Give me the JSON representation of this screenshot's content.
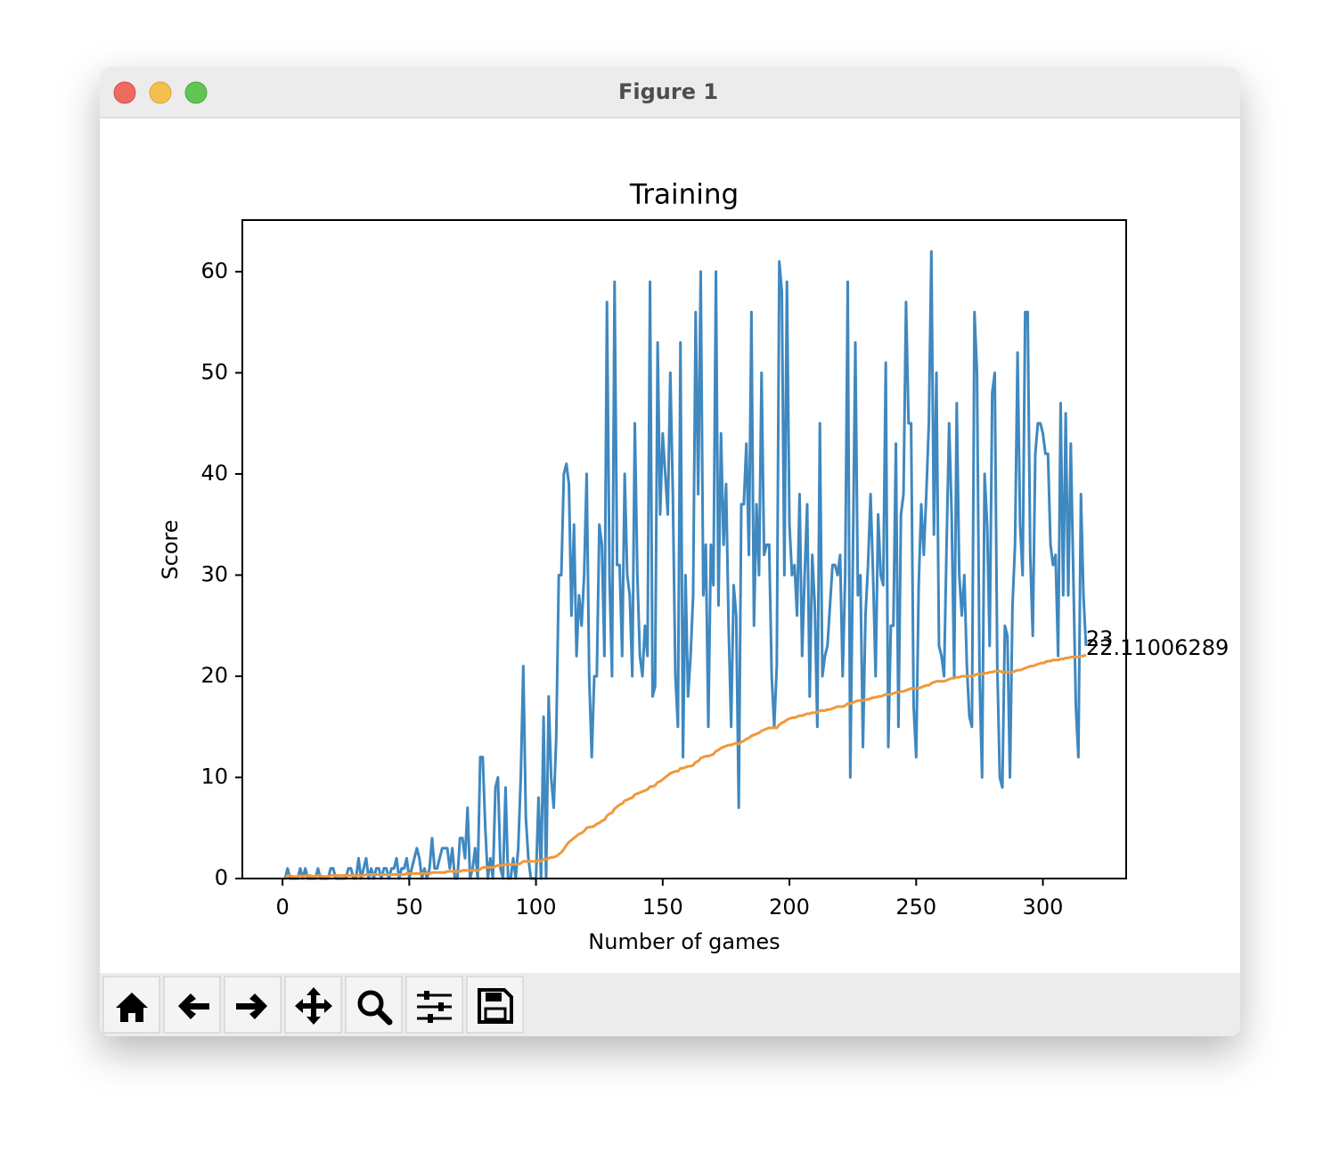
{
  "window": {
    "title": "Figure 1"
  },
  "chart_data": {
    "type": "line",
    "title": "Training",
    "x_label": "Number of games",
    "y_label": "Score",
    "x": [
      0,
      1,
      2,
      3,
      4,
      5,
      6,
      7,
      8,
      9,
      10,
      11,
      12,
      13,
      14,
      15,
      16,
      17,
      18,
      19,
      20,
      21,
      22,
      23,
      24,
      25,
      26,
      27,
      28,
      29,
      30,
      31,
      32,
      33,
      34,
      35,
      36,
      37,
      38,
      39,
      40,
      41,
      42,
      43,
      44,
      45,
      46,
      47,
      48,
      49,
      50,
      51,
      52,
      53,
      54,
      55,
      56,
      57,
      58,
      59,
      60,
      61,
      62,
      63,
      64,
      65,
      66,
      67,
      68,
      69,
      70,
      71,
      72,
      73,
      74,
      75,
      76,
      77,
      78,
      79,
      80,
      81,
      82,
      83,
      84,
      85,
      86,
      87,
      88,
      89,
      90,
      91,
      92,
      93,
      94,
      95,
      96,
      97,
      98,
      99,
      100,
      101,
      102,
      103,
      104,
      105,
      106,
      107,
      108,
      109,
      110,
      111,
      112,
      113,
      114,
      115,
      116,
      117,
      118,
      119,
      120,
      121,
      122,
      123,
      124,
      125,
      126,
      127,
      128,
      129,
      130,
      131,
      132,
      133,
      134,
      135,
      136,
      137,
      138,
      139,
      140,
      141,
      142,
      143,
      144,
      145,
      146,
      147,
      148,
      149,
      150,
      151,
      152,
      153,
      154,
      155,
      156,
      157,
      158,
      159,
      160,
      161,
      162,
      163,
      164,
      165,
      166,
      167,
      168,
      169,
      170,
      171,
      172,
      173,
      174,
      175,
      176,
      177,
      178,
      179,
      180,
      181,
      182,
      183,
      184,
      185,
      186,
      187,
      188,
      189,
      190,
      191,
      192,
      193,
      194,
      195,
      196,
      197,
      198,
      199,
      200,
      201,
      202,
      203,
      204,
      205,
      206,
      207,
      208,
      209,
      210,
      211,
      212,
      213,
      214,
      215,
      216,
      217,
      218,
      219,
      220,
      221,
      222,
      223,
      224,
      225,
      226,
      227,
      228,
      229,
      230,
      231,
      232,
      233,
      234,
      235,
      236,
      237,
      238,
      239,
      240,
      241,
      242,
      243,
      244,
      245,
      246,
      247,
      248,
      249,
      250,
      251,
      252,
      253,
      254,
      255,
      256,
      257,
      258,
      259,
      260,
      261,
      262,
      263,
      264,
      265,
      266,
      267,
      268,
      269,
      270,
      271,
      272,
      273,
      274,
      275,
      276,
      277,
      278,
      279,
      280,
      281,
      282,
      283,
      284,
      285,
      286,
      287,
      288,
      289,
      290,
      291,
      292,
      293,
      294,
      295,
      296,
      297,
      298,
      299,
      300,
      301,
      302,
      303,
      304,
      305,
      306,
      307,
      308,
      309,
      310,
      311,
      312,
      313,
      314,
      315,
      316,
      317
    ],
    "series": [
      {
        "color": "#3f88c0",
        "values": [
          0,
          0,
          1,
          0,
          0,
          0,
          0,
          1,
          0,
          1,
          0,
          0,
          0,
          0,
          1,
          0,
          0,
          0,
          0,
          1,
          1,
          0,
          0,
          0,
          0,
          0,
          1,
          1,
          0,
          0,
          2,
          0,
          1,
          2,
          0,
          1,
          0,
          1,
          1,
          0,
          1,
          1,
          0,
          1,
          1,
          2,
          0,
          1,
          1,
          2,
          0,
          1,
          2,
          3,
          2,
          0,
          1,
          0,
          1,
          4,
          1,
          1,
          2,
          3,
          3,
          3,
          1,
          3,
          0,
          0,
          4,
          4,
          2,
          7,
          0,
          1,
          3,
          0,
          12,
          12,
          5,
          0,
          2,
          0,
          9,
          10,
          1,
          0,
          9,
          0,
          0,
          2,
          0,
          3,
          10,
          21,
          6,
          2,
          0,
          0,
          0,
          8,
          0,
          16,
          0,
          18,
          10,
          7,
          14,
          30,
          30,
          40,
          41,
          39,
          26,
          35,
          22,
          28,
          25,
          30,
          40,
          20,
          12,
          20,
          20,
          35,
          33,
          22,
          57,
          30,
          20,
          59,
          31,
          31,
          22,
          40,
          30,
          28,
          20,
          45,
          30,
          22,
          20,
          25,
          22,
          59,
          18,
          19,
          53,
          36,
          44,
          40,
          36,
          50,
          38,
          20,
          15,
          53,
          12,
          30,
          18,
          22,
          28,
          56,
          38,
          60,
          28,
          33,
          15,
          33,
          29,
          60,
          27,
          44,
          33,
          39,
          25,
          15,
          29,
          26,
          7,
          37,
          37,
          43,
          32,
          56,
          25,
          37,
          30,
          50,
          32,
          33,
          33,
          20,
          15,
          21,
          61,
          58,
          30,
          59,
          35,
          30,
          31,
          26,
          38,
          22,
          30,
          37,
          18,
          32,
          27,
          15,
          45,
          20,
          22,
          23,
          27,
          31,
          31,
          30,
          32,
          20,
          30,
          59,
          10,
          31,
          53,
          28,
          30,
          13,
          26,
          31,
          38,
          30,
          20,
          36,
          30,
          29,
          51,
          13,
          25,
          25,
          43,
          15,
          36,
          38,
          57,
          45,
          45,
          17,
          12,
          29,
          37,
          32,
          38,
          45,
          62,
          34,
          50,
          23,
          22,
          20,
          33,
          45,
          36,
          20,
          47,
          30,
          26,
          30,
          21,
          16,
          15,
          56,
          50,
          20,
          10,
          40,
          35,
          23,
          48,
          50,
          21,
          10,
          9,
          25,
          24,
          10,
          27,
          33,
          52,
          35,
          30,
          56,
          56,
          32,
          24,
          42,
          45,
          45,
          44,
          42,
          42,
          33,
          31,
          32,
          22,
          47,
          28,
          46,
          28,
          43,
          30,
          17,
          12,
          38,
          28,
          23
        ]
      },
      {
        "color": "#f0983a",
        "values": [
          0,
          0,
          0.3,
          0.3,
          0.2,
          0.2,
          0.2,
          0.3,
          0.2,
          0.3,
          0.3,
          0.3,
          0.2,
          0.2,
          0.3,
          0.3,
          0.2,
          0.2,
          0.2,
          0.3,
          0.3,
          0.3,
          0.3,
          0.3,
          0.3,
          0.3,
          0.3,
          0.3,
          0.3,
          0.3,
          0.3,
          0.3,
          0.3,
          0.4,
          0.4,
          0.4,
          0.4,
          0.4,
          0.4,
          0.4,
          0.4,
          0.4,
          0.4,
          0.4,
          0.4,
          0.4,
          0.4,
          0.4,
          0.4,
          0.5,
          0.5,
          0.5,
          0.5,
          0.5,
          0.5,
          0.5,
          0.5,
          0.5,
          0.5,
          0.6,
          0.6,
          0.6,
          0.6,
          0.6,
          0.6,
          0.7,
          0.7,
          0.7,
          0.7,
          0.7,
          0.7,
          0.8,
          0.8,
          0.8,
          0.8,
          0.8,
          0.8,
          0.8,
          0.9,
          1.1,
          1.1,
          1.1,
          1.1,
          1.1,
          1.2,
          1.3,
          1.3,
          1.3,
          1.4,
          1.4,
          1.4,
          1.4,
          1.4,
          1.4,
          1.5,
          1.7,
          1.7,
          1.7,
          1.7,
          1.7,
          1.7,
          1.8,
          1.7,
          1.9,
          1.9,
          2.0,
          2.1,
          2.1,
          2.2,
          2.4,
          2.6,
          2.9,
          3.3,
          3.6,
          3.8,
          4.0,
          4.2,
          4.4,
          4.5,
          4.7,
          5.0,
          5.1,
          5.1,
          5.2,
          5.4,
          5.5,
          5.7,
          5.8,
          6.2,
          6.4,
          6.5,
          6.9,
          7.1,
          7.3,
          7.4,
          7.7,
          7.8,
          7.9,
          8.0,
          8.3,
          8.4,
          8.5,
          8.6,
          8.7,
          8.8,
          9.1,
          9.1,
          9.2,
          9.5,
          9.6,
          9.8,
          10.0,
          10.2,
          10.4,
          10.5,
          10.6,
          10.6,
          10.9,
          10.9,
          11.0,
          11.1,
          11.1,
          11.2,
          11.5,
          11.6,
          11.9,
          12.0,
          12.1,
          12.1,
          12.2,
          12.3,
          12.6,
          12.7,
          12.9,
          13.0,
          13.1,
          13.2,
          13.2,
          13.3,
          13.4,
          13.3,
          13.5,
          13.6,
          13.8,
          13.9,
          14.1,
          14.2,
          14.3,
          14.4,
          14.6,
          14.7,
          14.8,
          14.9,
          14.9,
          14.9,
          14.9,
          15.2,
          15.4,
          15.5,
          15.7,
          15.8,
          15.9,
          15.9,
          16.0,
          16.1,
          16.1,
          16.2,
          16.3,
          16.3,
          16.4,
          16.4,
          16.4,
          16.6,
          16.6,
          16.6,
          16.7,
          16.7,
          16.8,
          16.9,
          17.0,
          17.0,
          17.0,
          17.1,
          17.3,
          17.3,
          17.4,
          17.5,
          17.6,
          17.6,
          17.6,
          17.7,
          17.7,
          17.8,
          17.9,
          17.9,
          18.0,
          18.0,
          18.1,
          18.2,
          18.2,
          18.2,
          18.3,
          18.4,
          18.4,
          18.5,
          18.5,
          18.6,
          18.7,
          18.8,
          18.8,
          18.8,
          18.8,
          18.9,
          19.0,
          19.1,
          19.1,
          19.3,
          19.4,
          19.5,
          19.5,
          19.5,
          19.5,
          19.6,
          19.7,
          19.8,
          19.8,
          19.9,
          19.9,
          20.0,
          20.0,
          20.0,
          20.0,
          20.0,
          20.1,
          20.2,
          20.2,
          20.2,
          20.3,
          20.3,
          20.4,
          20.4,
          20.5,
          20.5,
          20.5,
          20.4,
          20.4,
          20.4,
          20.4,
          20.4,
          20.5,
          20.6,
          20.6,
          20.7,
          20.8,
          20.9,
          21.0,
          21.0,
          21.1,
          21.2,
          21.3,
          21.3,
          21.4,
          21.5,
          21.5,
          21.6,
          21.6,
          21.6,
          21.7,
          21.7,
          21.8,
          21.8,
          21.9,
          21.9,
          21.9,
          21.9,
          22.0,
          22.0,
          22.11006289
        ]
      }
    ],
    "xlim": [
      -15.85,
      332.85
    ],
    "ylim": [
      0,
      65.1
    ],
    "xticks": [
      0,
      50,
      100,
      150,
      200,
      250,
      300
    ],
    "yticks": [
      0,
      10,
      20,
      30,
      40,
      50,
      60
    ],
    "grid": false
  }
}
